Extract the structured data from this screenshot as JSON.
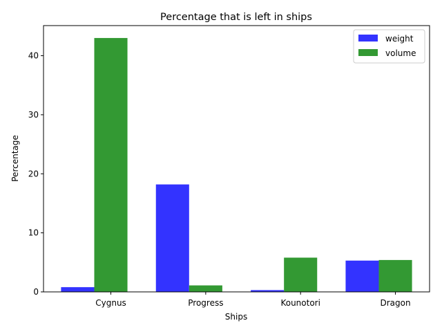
{
  "chart_data": {
    "type": "bar",
    "title": "Percentage that is left in ships",
    "xlabel": "Ships",
    "ylabel": "Percentage",
    "categories": [
      "Cygnus",
      "Progress",
      "Kounotori",
      "Dragon"
    ],
    "series": [
      {
        "name": "weight",
        "values": [
          0.8,
          18.2,
          0.3,
          5.3
        ],
        "color": "#3333ff"
      },
      {
        "name": "volume",
        "values": [
          43.0,
          1.1,
          5.8,
          5.4
        ],
        "color": "#339933"
      }
    ],
    "ylim": [
      0,
      45.1
    ],
    "yticks": [
      0,
      10,
      20,
      30,
      40
    ],
    "grid": false,
    "legend_position": "top-right"
  }
}
